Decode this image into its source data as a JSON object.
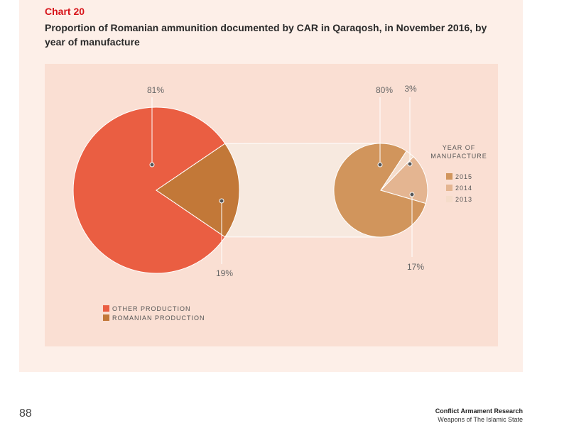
{
  "header": {
    "chart_number": "Chart 20",
    "title": "Proportion of Romanian ammunition documented by CAR in Qaraqosh, in November 2016, by year of manufacture"
  },
  "footer": {
    "page_number": "88",
    "organization": "Conflict Armament Research",
    "report_title": "Weapons of The Islamic State"
  },
  "colors": {
    "other_production": "#ea5e42",
    "romanian_production": "#c27838",
    "year_2015": "#d1955c",
    "year_2014": "#e4b591",
    "year_2013": "#f5dcca",
    "connector_band": "#f7e9df"
  },
  "chart_data": [
    {
      "type": "pie",
      "slices": [
        {
          "label": "OTHER PRODUCTION",
          "value": 81,
          "display": "81%"
        },
        {
          "label": "ROMANIAN PRODUCTION",
          "value": 19,
          "display": "19%"
        }
      ],
      "legend": {
        "placement": "bottom-left",
        "entries": [
          "OTHER PRODUCTION",
          "ROMANIAN PRODUCTION"
        ]
      }
    },
    {
      "type": "pie",
      "legend_title": "YEAR OF MANUFACTURE",
      "slices": [
        {
          "label": "2015",
          "value": 80,
          "display": "80%"
        },
        {
          "label": "2014",
          "value": 17,
          "display": "17%"
        },
        {
          "label": "2013",
          "value": 3,
          "display": "3%"
        }
      ],
      "legend": {
        "placement": "right",
        "entries": [
          "2015",
          "2014",
          "2013"
        ]
      }
    }
  ]
}
